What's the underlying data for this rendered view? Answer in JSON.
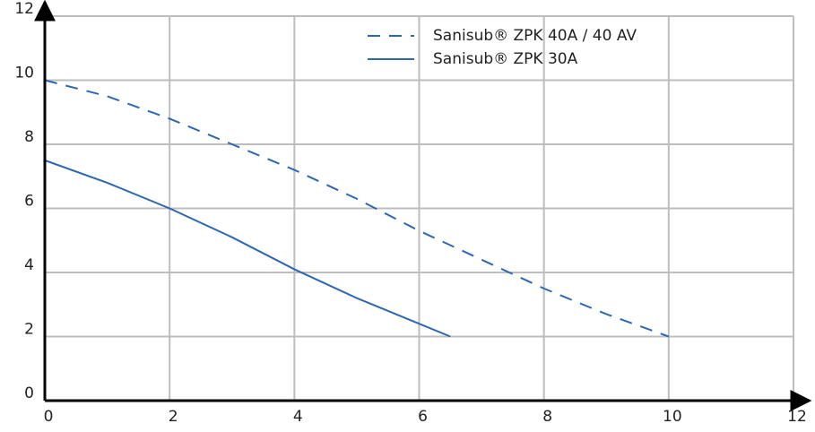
{
  "chart_data": {
    "type": "line",
    "xlim": [
      0,
      12
    ],
    "ylim": [
      0,
      12
    ],
    "xticks": [
      0,
      2,
      4,
      6,
      8,
      10,
      12
    ],
    "yticks": [
      0,
      2,
      4,
      6,
      8,
      10,
      12
    ],
    "grid": true,
    "legend": "top-right",
    "series": [
      {
        "name": "Sanisub® ZPK 40A / 40 AV",
        "color": "#2d67b2",
        "style": "dashed",
        "x": [
          0,
          1,
          2,
          3,
          4,
          5,
          6,
          7,
          8,
          9,
          10
        ],
        "values": [
          10,
          9.5,
          8.8,
          8.0,
          7.2,
          6.3,
          5.3,
          4.4,
          3.5,
          2.7,
          2
        ]
      },
      {
        "name": "Sanisub® ZPK 30A",
        "color": "#2d67b2",
        "style": "solid",
        "x": [
          0,
          1,
          2,
          3,
          4,
          5,
          6,
          6.5
        ],
        "values": [
          7.5,
          6.8,
          6.0,
          5.1,
          4.1,
          3.2,
          2.4,
          2
        ]
      }
    ]
  }
}
